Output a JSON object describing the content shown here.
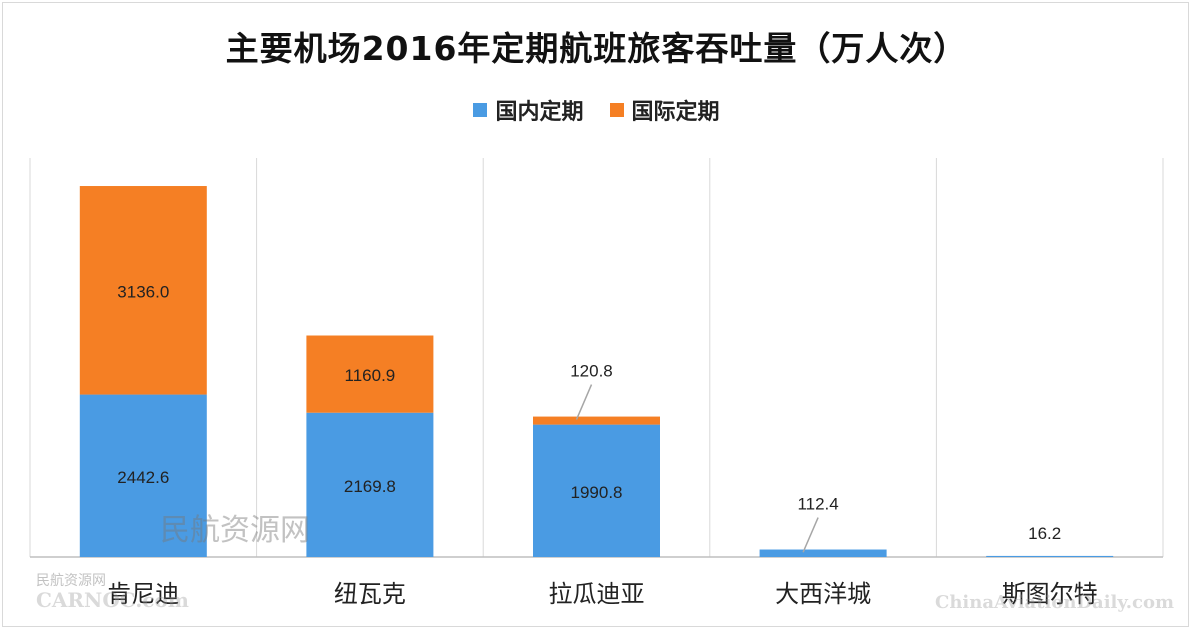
{
  "chart_data": {
    "type": "bar",
    "stacked": true,
    "title": "主要机场2016年定期航班旅客吞吐量（万人次）",
    "categories": [
      "肯尼迪",
      "纽瓦克",
      "拉瓜迪亚",
      "大西洋城",
      "斯图尔特"
    ],
    "series": [
      {
        "name": "国内定期",
        "color": "#4a9be3",
        "values": [
          2442.6,
          2169.8,
          1990.8,
          112.4,
          16.2
        ]
      },
      {
        "name": "国际定期",
        "color": "#f57f24",
        "values": [
          3136.0,
          1160.9,
          120.8,
          0,
          0
        ]
      }
    ],
    "data_labels": [
      [
        "2442.6",
        "2169.8",
        "1990.8",
        "112.4",
        "16.2"
      ],
      [
        "3136.0",
        "1160.9",
        "120.8",
        "",
        ""
      ]
    ],
    "ylim": [
      0,
      6000
    ],
    "grid": "vertical category separators",
    "legend": "top",
    "xlabel": "",
    "ylabel": ""
  },
  "watermarks": [
    "民航资源网",
    "民航资源网",
    "CARNOC.com",
    "ChinaAviationDaily.com"
  ]
}
